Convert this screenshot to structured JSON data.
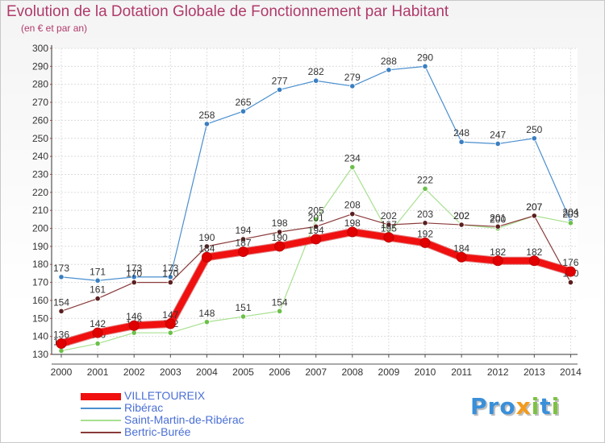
{
  "title": "Evolution de la Dotation Globale de Fonctionnement par Habitant",
  "subtitle": "(en € et par an)",
  "logo": "Proxiti",
  "chart_data": {
    "type": "line",
    "title": "Evolution de la Dotation Globale de Fonctionnement par Habitant",
    "ylabel": "(en € et par an)",
    "xlabel": "",
    "ylim": [
      130,
      300
    ],
    "y_ticks": [
      130,
      140,
      150,
      160,
      170,
      180,
      190,
      200,
      210,
      220,
      230,
      240,
      250,
      260,
      270,
      280,
      290,
      300
    ],
    "grid": true,
    "legend_position": "bottom-left",
    "categories": [
      "2000",
      "2001",
      "2002",
      "2003",
      "2004",
      "2005",
      "2006",
      "2007",
      "2008",
      "2009",
      "2010",
      "2011",
      "2012",
      "2013",
      "2014"
    ],
    "series": [
      {
        "name": "Ribérac",
        "color": "#4a8fcf",
        "marker": "#3a7fc0",
        "width": 1.2,
        "values": [
          173,
          171,
          173,
          173,
          258,
          265,
          277,
          282,
          279,
          288,
          290,
          248,
          247,
          250,
          204
        ]
      },
      {
        "name": "Saint-Martin-de-Ribérac",
        "color": "#a8e090",
        "marker": "#6cc04a",
        "width": 1.2,
        "values": [
          132,
          136,
          142,
          142,
          148,
          151,
          154,
          205,
          234,
          197,
          222,
          202,
          200,
          207,
          203
        ]
      },
      {
        "name": "Bertric-Burée",
        "color": "#8a3a3a",
        "marker": "#5a1f1f",
        "width": 1.2,
        "values": [
          154,
          161,
          170,
          170,
          190,
          194,
          198,
          201,
          208,
          202,
          203,
          202,
          201,
          207,
          170
        ]
      },
      {
        "name": "VILLETOUREIX",
        "color": "#f01010",
        "marker": "#e00000",
        "width": 8,
        "values": [
          136,
          142,
          146,
          147,
          184,
          187,
          190,
          194,
          198,
          195,
          192,
          184,
          182,
          182,
          176
        ]
      }
    ],
    "legend_order": [
      "VILLETOUREIX",
      "Ribérac",
      "Saint-Martin-de-Ribérac",
      "Bertric-Burée"
    ]
  }
}
